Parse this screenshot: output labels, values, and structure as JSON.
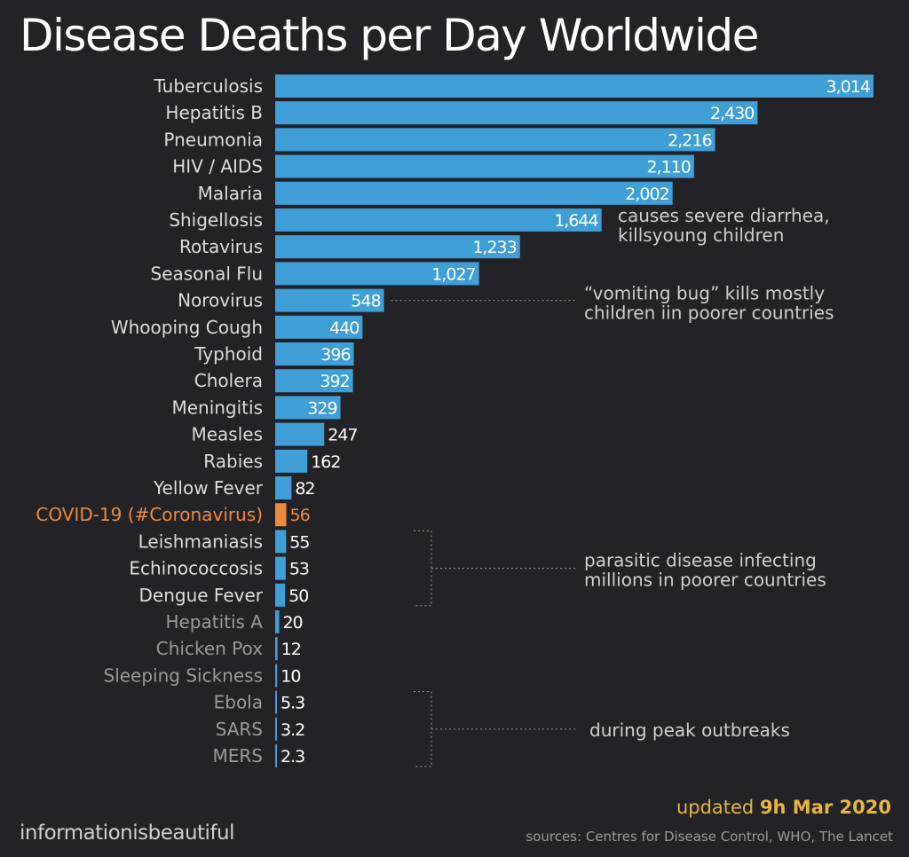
{
  "title": "Disease Deaths per Day Worldwide",
  "colors": {
    "background": "#232226",
    "bar_default": "#3f9fd6",
    "bar_highlight": "#ee8a3c",
    "label_default": "#dcdcdc",
    "label_dim": "#9a9a9a",
    "highlight_text": "#ee8a3c",
    "footer_accent": "#e8b53e"
  },
  "chart_data": {
    "type": "bar",
    "orientation": "horizontal",
    "title": "Disease Deaths per Day Worldwide",
    "xlabel": "",
    "ylabel": "",
    "grid": false,
    "xlim": [
      0,
      3014
    ],
    "categories": [
      "Tuberculosis",
      "Hepatitis B",
      "Pneumonia",
      "HIV / AIDS",
      "Malaria",
      "Shigellosis",
      "Rotavirus",
      "Seasonal Flu",
      "Norovirus",
      "Whooping Cough",
      "Typhoid",
      "Cholera",
      "Meningitis",
      "Measles",
      "Rabies",
      "Yellow Fever",
      "COVID-19 (#Coronavirus)",
      "Leishmaniasis",
      "Echinococcosis",
      "Dengue Fever",
      "Hepatitis A",
      "Chicken Pox",
      "Sleeping Sickness",
      "Ebola",
      "SARS",
      "MERS"
    ],
    "values": [
      3014,
      2430,
      2216,
      2110,
      2002,
      1644,
      1233,
      1027,
      548,
      440,
      396,
      392,
      329,
      247,
      162,
      82,
      56,
      55,
      53,
      50,
      20,
      12,
      10,
      5.3,
      3.2,
      2.3
    ],
    "value_labels": [
      "3,014",
      "2,430",
      "2,216",
      "2,110",
      "2,002",
      "1,644",
      "1,233",
      "1,027",
      "548",
      "440",
      "396",
      "392",
      "329",
      "247",
      "162",
      "82",
      "56",
      "55",
      "53",
      "50",
      "20",
      "12",
      "10",
      "5.3",
      "3.2",
      "2.3"
    ],
    "highlight_category": "COVID-19 (#Coronavirus)",
    "dimmed_categories": [
      "Hepatitis A",
      "Chicken Pox",
      "Sleeping Sickness",
      "Ebola",
      "SARS",
      "MERS"
    ],
    "annotations": [
      {
        "target": "Shigellosis",
        "lines": [
          "causes severe diarrhea,",
          "killsyoung children"
        ]
      },
      {
        "target": "Norovirus",
        "lines": [
          "“vomiting bug” kills mostly",
          "children iin poorer countries"
        ]
      },
      {
        "targets": [
          "Leishmaniasis",
          "Echinococcosis",
          "Dengue Fever"
        ],
        "lines": [
          "parasitic disease infecting",
          "millions in poorer countries"
        ]
      },
      {
        "targets": [
          "Ebola",
          "SARS",
          "MERS"
        ],
        "lines": [
          "during peak outbreaks"
        ]
      }
    ]
  },
  "footer": {
    "brand": "informationisbeautiful",
    "updated_prefix": "updated ",
    "updated_date": "9h Mar 2020",
    "sources": "sources: Centres for Disease Control, WHO, The Lancet"
  }
}
